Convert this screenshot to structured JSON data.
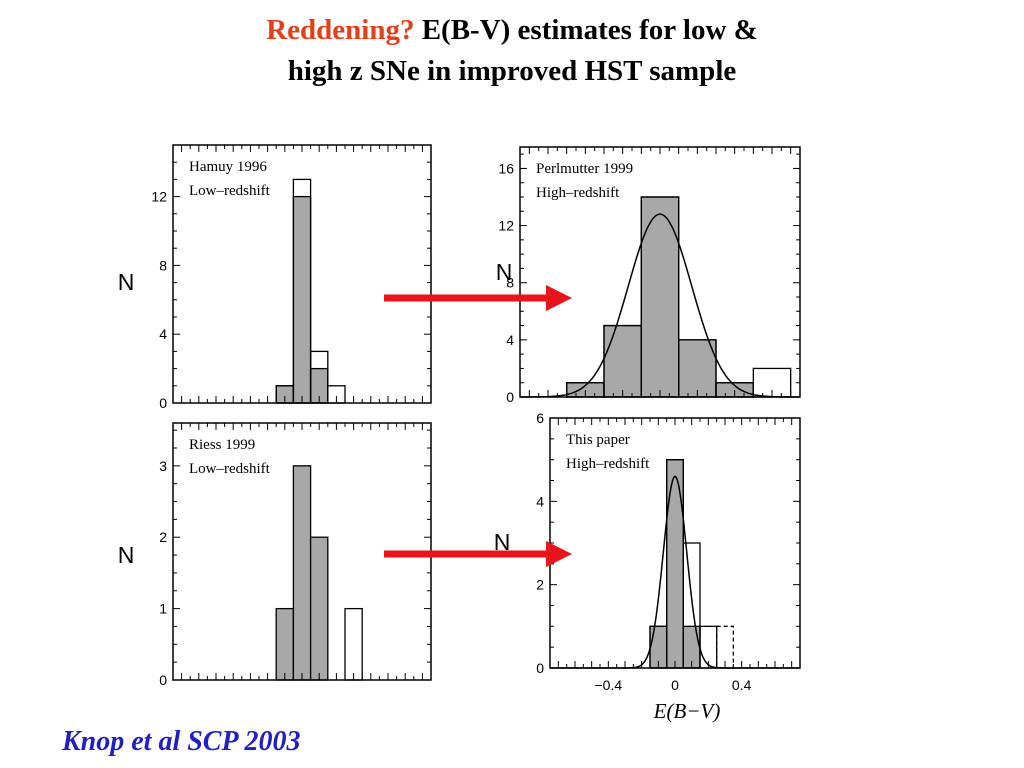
{
  "title": {
    "accent": "Reddening?",
    "line1_rest": " E(B-V) estimates for low &",
    "line2": "high z SNe in improved HST sample"
  },
  "citation": "Knop et al SCP 2003",
  "colors": {
    "accent": "#e3401a",
    "citation": "#1f1fc8",
    "arrow": "#e8141a",
    "fill": "#a8a8a8"
  },
  "chart_data": [
    {
      "type": "bar",
      "id": "hamuy",
      "labels": [
        "Hamuy 1996",
        "Low–redshift"
      ],
      "ylabel": "N",
      "xlabel": "",
      "xlim": [
        -0.75,
        0.75
      ],
      "ylim": [
        0,
        15
      ],
      "yticks": [
        0,
        4,
        8,
        12
      ],
      "xtick_labels": [],
      "bin_width": 0.1,
      "series": [
        {
          "style": "filled",
          "bins": [
            {
              "x0": -0.15,
              "value": 1
            },
            {
              "x0": -0.05,
              "value": 12
            },
            {
              "x0": 0.05,
              "value": 2
            }
          ]
        },
        {
          "style": "outline",
          "bins": [
            {
              "x0": -0.15,
              "value": 1
            },
            {
              "x0": -0.05,
              "value": 13
            },
            {
              "x0": 0.05,
              "value": 3
            },
            {
              "x0": 0.15,
              "value": 1
            }
          ]
        }
      ]
    },
    {
      "type": "bar",
      "id": "perlmutter",
      "labels": [
        "Perlmutter 1999",
        "High–redshift"
      ],
      "ylabel": "N",
      "xlabel": "",
      "xlim": [
        -0.75,
        0.75
      ],
      "ylim": [
        0,
        17.5
      ],
      "yticks": [
        0,
        4,
        8,
        12,
        16
      ],
      "xtick_labels": [],
      "bin_width": 0.2,
      "gaussian": {
        "mean": 0.0,
        "sigma": 0.17,
        "amplitude": 12.8
      },
      "series": [
        {
          "style": "filled",
          "bins": [
            {
              "x0": -0.5,
              "value": 1
            },
            {
              "x0": -0.3,
              "value": 5
            },
            {
              "x0": -0.1,
              "value": 14
            },
            {
              "x0": 0.1,
              "value": 4
            },
            {
              "x0": 0.3,
              "value": 1
            }
          ]
        },
        {
          "style": "outline",
          "bins": [
            {
              "x0": -0.5,
              "value": 1
            },
            {
              "x0": -0.3,
              "value": 5
            },
            {
              "x0": -0.1,
              "value": 14
            },
            {
              "x0": 0.1,
              "value": 4
            },
            {
              "x0": 0.3,
              "value": 1
            },
            {
              "x0": 0.5,
              "value": 2
            }
          ]
        }
      ]
    },
    {
      "type": "bar",
      "id": "riess",
      "labels": [
        "Riess 1999",
        "Low–redshift"
      ],
      "ylabel": "N",
      "xlabel": "",
      "xlim": [
        -0.75,
        0.75
      ],
      "ylim": [
        0,
        3.6
      ],
      "yticks": [
        0,
        1,
        2,
        3
      ],
      "xtick_labels": [],
      "bin_width": 0.1,
      "series": [
        {
          "style": "filled",
          "bins": [
            {
              "x0": -0.15,
              "value": 1
            },
            {
              "x0": -0.05,
              "value": 3
            },
            {
              "x0": 0.05,
              "value": 2
            }
          ]
        },
        {
          "style": "outline",
          "bins": [
            {
              "x0": 0.25,
              "value": 1
            }
          ]
        }
      ]
    },
    {
      "type": "bar",
      "id": "thispaper",
      "labels": [
        "This paper",
        "High–redshift"
      ],
      "ylabel": "N",
      "xlabel": "E(B−V)",
      "xlim": [
        -0.75,
        0.75
      ],
      "ylim": [
        0,
        6
      ],
      "yticks": [
        0,
        2,
        4,
        6
      ],
      "xtick_labels": [
        {
          "x": -0.4,
          "label": "−0.4"
        },
        {
          "x": 0,
          "label": "0"
        },
        {
          "x": 0.4,
          "label": "0.4"
        }
      ],
      "bin_width": 0.1,
      "gaussian": {
        "mean": 0.0,
        "sigma": 0.07,
        "amplitude": 4.6
      },
      "series": [
        {
          "style": "filled",
          "bins": [
            {
              "x0": -0.15,
              "value": 1
            },
            {
              "x0": -0.05,
              "value": 5
            },
            {
              "x0": 0.05,
              "value": 1
            }
          ]
        },
        {
          "style": "outline",
          "bins": [
            {
              "x0": -0.15,
              "value": 1
            },
            {
              "x0": -0.05,
              "value": 5
            },
            {
              "x0": 0.05,
              "value": 3
            },
            {
              "x0": 0.15,
              "value": 1
            }
          ]
        },
        {
          "style": "dashed",
          "bins": [
            {
              "x0": 0.25,
              "value": 1
            }
          ]
        }
      ]
    }
  ]
}
